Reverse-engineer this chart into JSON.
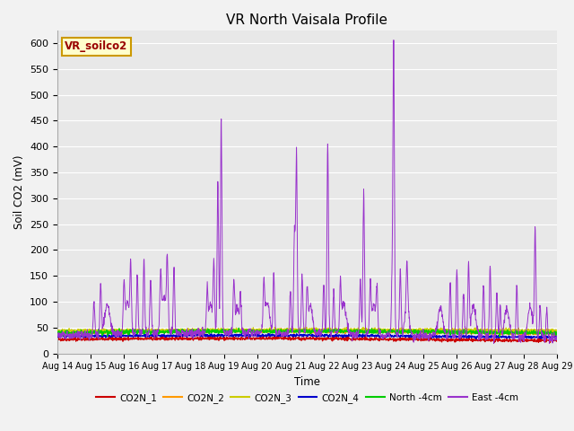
{
  "title": "VR North Vaisala Profile",
  "ylabel": "Soil CO2 (mV)",
  "xlabel": "Time",
  "ylim": [
    0,
    625
  ],
  "yticks": [
    0,
    50,
    100,
    150,
    200,
    250,
    300,
    350,
    400,
    450,
    500,
    550,
    600
  ],
  "xtick_labels": [
    "Aug 14",
    "Aug 15",
    "Aug 16",
    "Aug 17",
    "Aug 18",
    "Aug 19",
    "Aug 20",
    "Aug 21",
    "Aug 22",
    "Aug 23",
    "Aug 24",
    "Aug 25",
    "Aug 26",
    "Aug 27",
    "Aug 28",
    "Aug 29"
  ],
  "series_colors": {
    "CO2N_1": "#cc0000",
    "CO2N_2": "#ff9900",
    "CO2N_3": "#cccc00",
    "CO2N_4": "#0000cc",
    "North_4cm": "#00cc00",
    "East_4cm": "#9933cc"
  },
  "annotation_text": "VR_soilco2",
  "annotation_color": "#990000",
  "annotation_bg": "#ffffcc",
  "annotation_border": "#cc9900",
  "plot_bg": "#e8e8e8",
  "fig_bg": "#f2f2f2",
  "grid_color": "#ffffff",
  "n_points": 2000
}
